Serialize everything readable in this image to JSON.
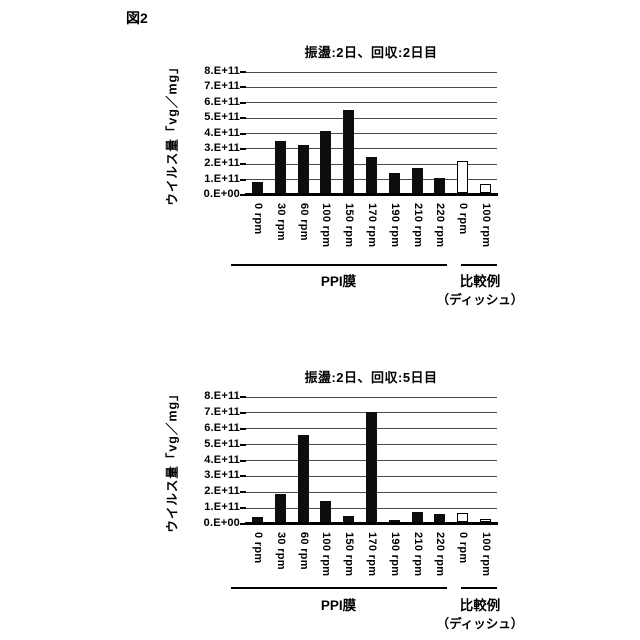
{
  "figure_label": "図2",
  "colors": {
    "background": "#ffffff",
    "filled_bar": "#0d0d0d",
    "open_bar_border": "#000000",
    "gridline": "#4a4a4a"
  },
  "chart_data": [
    {
      "type": "bar",
      "title": "振盪:2日、回収:2日目",
      "ylabel": "ウイルス量「vg／mg」",
      "xlabel": "",
      "ylim": [
        0,
        800000000000.0
      ],
      "grid": true,
      "legend": "none",
      "y_tick_labels": [
        "0.E+00",
        "1.E+11",
        "2.E+11",
        "3.E+11",
        "4.E+11",
        "5.E+11",
        "6.E+11",
        "7.E+11",
        "8.E+11"
      ],
      "categories": [
        "0 rpm",
        "30 rpm",
        "60 rpm",
        "100 rpm",
        "150 rpm",
        "170 rpm",
        "190 rpm",
        "210 rpm",
        "220 rpm",
        "0 rpm",
        "100 rpm"
      ],
      "values": [
        70000000000.0,
        340000000000.0,
        310000000000.0,
        400000000000.0,
        540000000000.0,
        235000000000.0,
        130000000000.0,
        165000000000.0,
        100000000000.0,
        210000000000.0,
        60000000000.0
      ],
      "bar_fill": [
        "black",
        "black",
        "black",
        "black",
        "black",
        "black",
        "black",
        "black",
        "black",
        "white",
        "white"
      ],
      "group_labels": [
        "PPI膜",
        "比較例",
        "（ディッシュ）"
      ]
    },
    {
      "type": "bar",
      "title": "振盪:2日、回収:5日目",
      "ylabel": "ウイルス量「vg／mg」",
      "xlabel": "",
      "ylim": [
        0,
        800000000000.0
      ],
      "grid": true,
      "legend": "none",
      "y_tick_labels": [
        "0.E+00",
        "1.E+11",
        "2.E+11",
        "3.E+11",
        "4.E+11",
        "5.E+11",
        "6.E+11",
        "7.E+11",
        "8.E+11"
      ],
      "categories": [
        "0 rpm",
        "30 rpm",
        "60 rpm",
        "100 rpm",
        "150 rpm",
        "170 rpm",
        "190 rpm",
        "210 rpm",
        "220 rpm",
        "0 rpm",
        "100 rpm"
      ],
      "values": [
        30000000000.0,
        175000000000.0,
        550000000000.0,
        130000000000.0,
        40000000000.0,
        690000000000.0,
        15000000000.0,
        65000000000.0,
        50000000000.0,
        55000000000.0,
        20000000000.0
      ],
      "bar_fill": [
        "black",
        "black",
        "black",
        "black",
        "black",
        "black",
        "black",
        "black",
        "black",
        "white",
        "white"
      ],
      "group_labels": [
        "PPI膜",
        "比較例",
        "（ディッシュ）"
      ]
    }
  ]
}
